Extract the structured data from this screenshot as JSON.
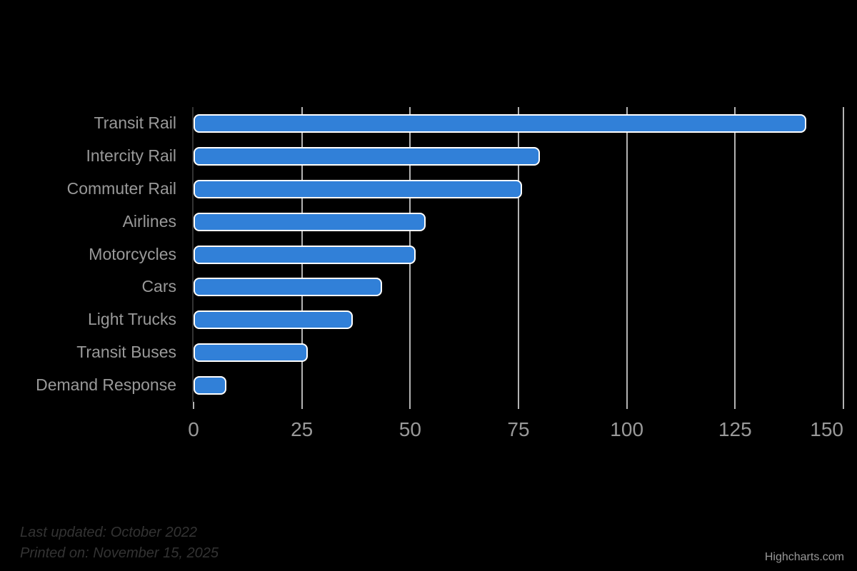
{
  "chart_data": {
    "type": "bar",
    "title": "",
    "categories": [
      "Transit Rail",
      "Intercity Rail",
      "Commuter Rail",
      "Airlines",
      "Motorcycles",
      "Cars",
      "Light Trucks",
      "Transit Buses",
      "Demand Response"
    ],
    "values": [
      141.4,
      79.9,
      75.8,
      53.6,
      51.2,
      43.5,
      36.7,
      26.3,
      7.5
    ],
    "xlabel": "",
    "ylabel": "",
    "xlim": [
      0,
      150
    ],
    "x_ticks": [
      0,
      25,
      50,
      75,
      100,
      125,
      150
    ],
    "grid": true,
    "legend": "none",
    "orientation": "horizontal",
    "colors": {
      "background": "#000000",
      "bar_fill": "#3180d8",
      "bar_border": "#ffffff",
      "gridline": "#b3b3b3",
      "axis_line": "#333333",
      "tick_mark": "#b3b3b3",
      "category_label": "#999999",
      "tick_label": "#999999"
    }
  },
  "annotations": {
    "last_updated": "Last updated: October 2022",
    "printed_on": "Printed on: November 15, 2025"
  },
  "credits": {
    "label": "Highcharts.com"
  }
}
